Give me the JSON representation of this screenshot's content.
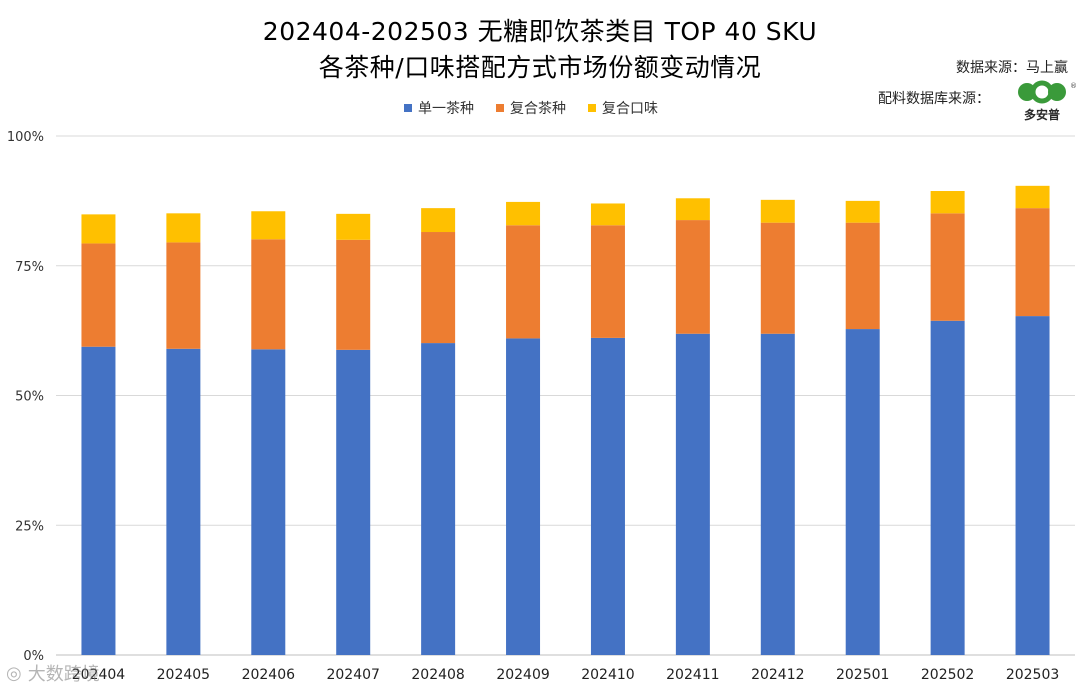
{
  "header": {
    "title_line1": "202404-202503 无糖即饮茶类目 TOP 40 SKU",
    "title_line2": "各茶种/口味搭配方式市场份额变动情况",
    "data_source": "数据来源：马上赢",
    "db_source": "配料数据库来源：",
    "logo_text": "多安普",
    "watermark": "大数跨境"
  },
  "colors": {
    "single": "#4472c4",
    "compound_tea": "#ed7d31",
    "compound_flavor": "#ffc000",
    "grid": "#d9d9d9"
  },
  "chart_data": {
    "type": "bar",
    "stacked": true,
    "title": "202404-202503 无糖即饮茶类目 TOP 40 SKU 各茶种/口味搭配方式市场份额变动情况",
    "categories": [
      "202404",
      "202405",
      "202406",
      "202407",
      "202408",
      "202409",
      "202410",
      "202411",
      "202412",
      "202501",
      "202502",
      "202503"
    ],
    "series": [
      {
        "name": "单一茶种",
        "values": [
          59.4,
          59.0,
          58.9,
          58.8,
          60.1,
          61.0,
          61.1,
          61.9,
          61.9,
          62.8,
          64.4,
          65.3
        ]
      },
      {
        "name": "复合茶种",
        "values": [
          19.9,
          20.5,
          21.2,
          21.2,
          21.4,
          21.8,
          21.7,
          21.9,
          21.4,
          20.5,
          20.7,
          20.8
        ]
      },
      {
        "name": "复合口味",
        "values": [
          5.6,
          5.6,
          5.4,
          5.0,
          4.6,
          4.5,
          4.2,
          4.2,
          4.4,
          4.2,
          4.3,
          4.3
        ]
      }
    ],
    "yticks": [
      "0%",
      "25%",
      "50%",
      "75%",
      "100%"
    ],
    "ylim": [
      0,
      100
    ],
    "legend_position": "top-center",
    "grid": true
  }
}
